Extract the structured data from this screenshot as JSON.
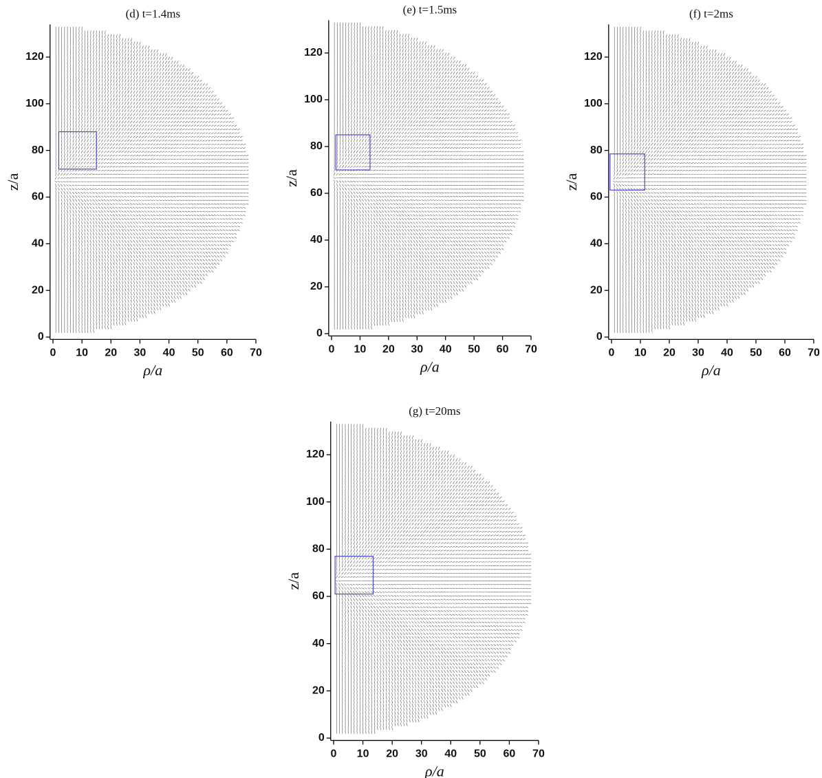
{
  "chart_data": [
    {
      "type": "quiver",
      "title": "(d) t=1.4ms",
      "xlabel": "ρ/a",
      "ylabel": "z/a",
      "xlim": [
        -1,
        70
      ],
      "ylim": [
        -1,
        134
      ],
      "xticks": [
        0,
        10,
        20,
        30,
        40,
        50,
        60,
        70
      ],
      "yticks": [
        0,
        20,
        40,
        60,
        80,
        100,
        120
      ],
      "box": {
        "rho": [
          2,
          15
        ],
        "z": [
          72,
          88
        ],
        "color": "#4a4ad8"
      },
      "field": {
        "rho_max": 68,
        "z_min": 1,
        "z_max": 133,
        "color": "#555555"
      }
    },
    {
      "type": "quiver",
      "title": "(e) t=1.5ms",
      "xlabel": "ρ/a",
      "ylabel": "z/a",
      "xlim": [
        -1,
        70
      ],
      "ylim": [
        -1,
        134
      ],
      "xticks": [
        0,
        10,
        20,
        30,
        40,
        50,
        60,
        70
      ],
      "yticks": [
        0,
        20,
        40,
        60,
        80,
        100,
        120
      ],
      "box": {
        "rho": [
          1.5,
          13.5
        ],
        "z": [
          70,
          85
        ],
        "color": "#4a4ad8"
      },
      "field": {
        "rho_max": 68,
        "z_min": 1,
        "z_max": 133,
        "color": "#555555"
      }
    },
    {
      "type": "quiver",
      "title": "(f) t=2ms",
      "xlabel": "ρ/a",
      "ylabel": "z/a",
      "xlim": [
        -1,
        70
      ],
      "ylim": [
        -1,
        134
      ],
      "xticks": [
        0,
        10,
        20,
        30,
        40,
        50,
        60,
        70
      ],
      "yticks": [
        0,
        20,
        40,
        60,
        80,
        100,
        120
      ],
      "box": {
        "rho": [
          -0.5,
          11.5
        ],
        "z": [
          63,
          78.5
        ],
        "color": "#4a4ad8"
      },
      "field": {
        "rho_max": 68,
        "z_min": 1,
        "z_max": 133,
        "color": "#555555"
      }
    },
    {
      "type": "quiver",
      "title": "(g) t=20ms",
      "xlabel": "ρ/a",
      "ylabel": "z/a",
      "xlim": [
        -1,
        70
      ],
      "ylim": [
        -1,
        134
      ],
      "xticks": [
        0,
        10,
        20,
        30,
        40,
        50,
        60,
        70
      ],
      "yticks": [
        0,
        20,
        40,
        60,
        80,
        100,
        120
      ],
      "box": {
        "rho": [
          0.5,
          13.5
        ],
        "z": [
          61,
          77
        ],
        "color": "#4a4ad8"
      },
      "field": {
        "rho_max": 68,
        "z_min": 1,
        "z_max": 133,
        "color": "#555555"
      }
    }
  ]
}
